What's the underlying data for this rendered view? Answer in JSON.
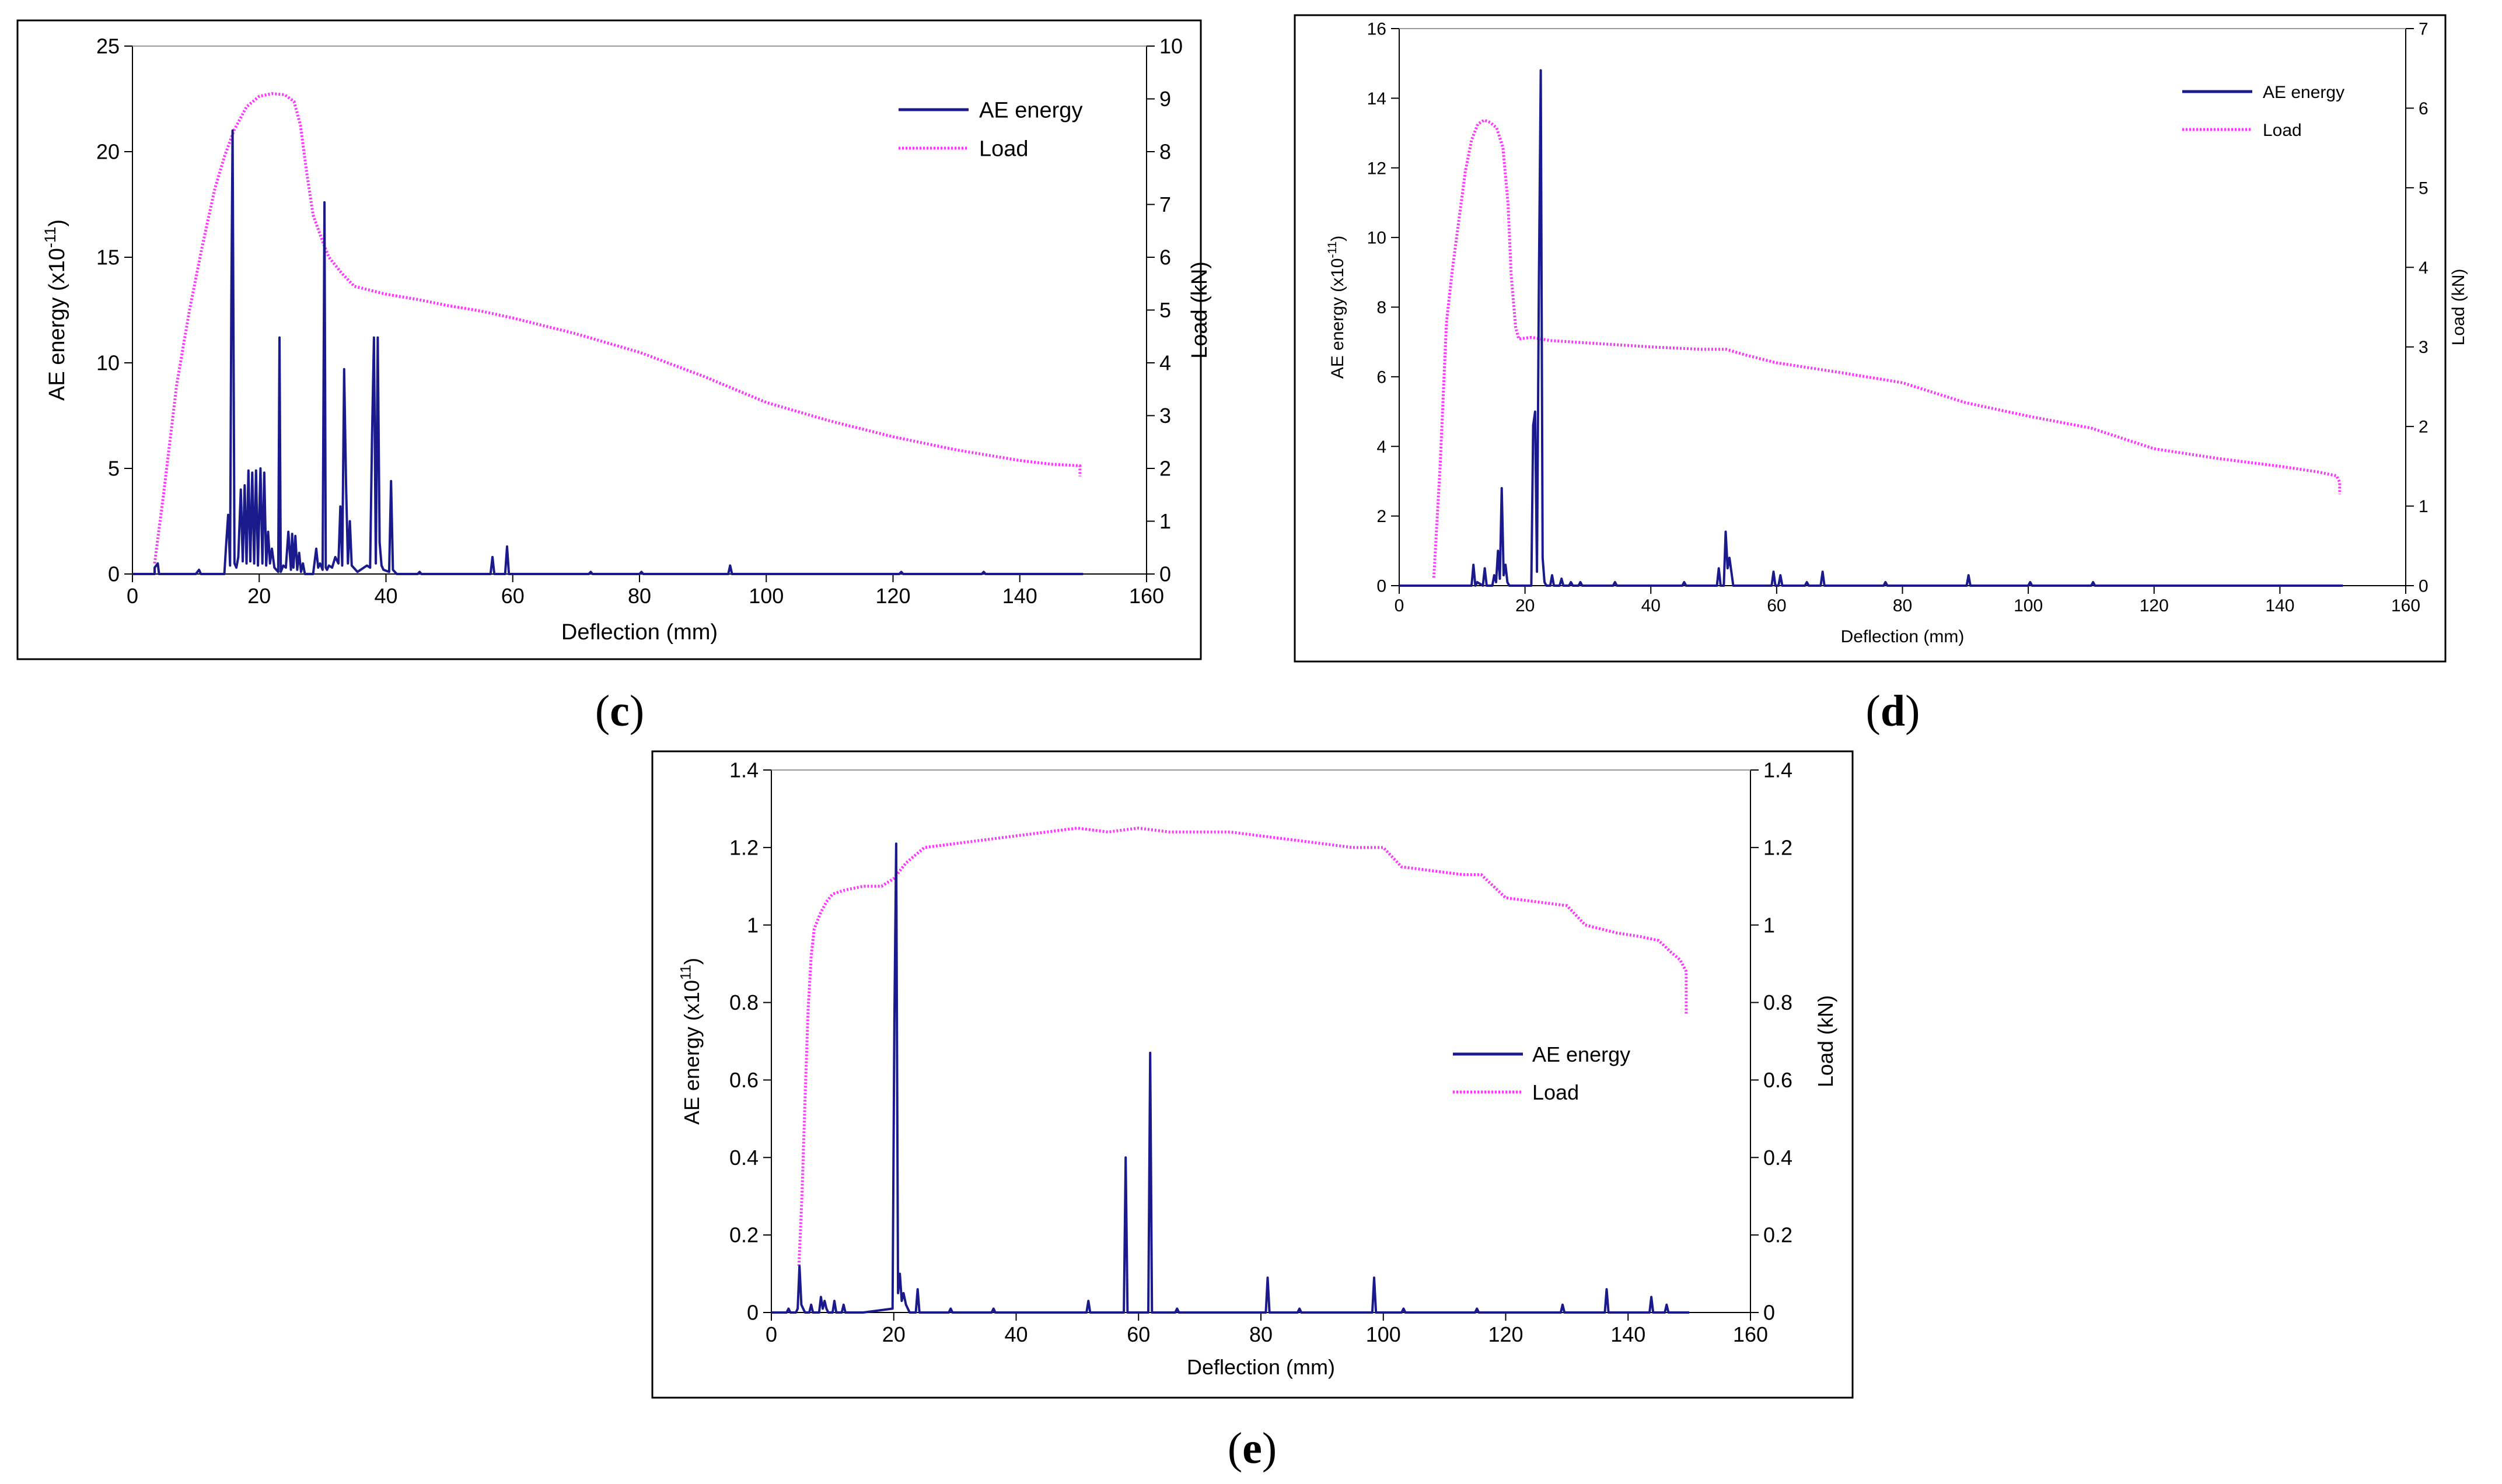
{
  "colors": {
    "ae_energy": "#1a1a8c",
    "load": "#ff33ff",
    "frame": "#000000",
    "plot_top": "#9a9a9a"
  },
  "chart_data": [
    {
      "id": "c",
      "type": "line",
      "caption_letter": "c",
      "xlabel": "Deflection (mm)",
      "ylabel_left": "AE energy (x10",
      "ylabel_left_exp": "-11",
      "ylabel_left_suffix": ")",
      "ylabel_right": "Load (kN)",
      "xlim": [
        0,
        160
      ],
      "ylim_left": [
        0,
        25
      ],
      "ylim_right": [
        0,
        10
      ],
      "xticks": [
        0,
        20,
        40,
        60,
        80,
        100,
        120,
        140,
        160
      ],
      "yticks_left": [
        0,
        5,
        10,
        15,
        20,
        25
      ],
      "yticks_right": [
        0,
        1,
        2,
        3,
        4,
        5,
        6,
        7,
        8,
        9,
        10
      ],
      "legend": [
        "AE energy",
        "Load"
      ],
      "legend_position": "top-right",
      "series": [
        {
          "name": "Load",
          "style": "dotted",
          "axis": "right",
          "x": [
            3.5,
            5,
            7,
            9,
            11,
            13,
            14.5,
            16,
            18,
            20,
            22,
            24,
            25.5,
            26.5,
            27.5,
            28.5,
            30,
            31,
            33,
            35,
            40,
            45,
            50,
            55,
            60,
            70,
            80,
            90,
            100,
            110,
            120,
            130,
            140,
            145,
            149.5,
            149.5
          ],
          "y": [
            0.2,
            1.6,
            3.6,
            5.0,
            6.2,
            7.3,
            7.9,
            8.4,
            8.85,
            9.05,
            9.1,
            9.08,
            8.95,
            8.5,
            7.6,
            6.8,
            6.3,
            6.0,
            5.7,
            5.45,
            5.3,
            5.2,
            5.08,
            4.98,
            4.85,
            4.55,
            4.2,
            3.75,
            3.25,
            2.9,
            2.6,
            2.35,
            2.15,
            2.08,
            2.05,
            1.85
          ]
        },
        {
          "name": "AE energy",
          "style": "solid",
          "axis": "left",
          "x": [
            0,
            3.5,
            3.5,
            4,
            4.2,
            10,
            10.5,
            10.8,
            14.5,
            14.8,
            15.1,
            15.4,
            15.6,
            15.8,
            16.1,
            16.4,
            16.7,
            17.1,
            17.4,
            17.7,
            18,
            18.3,
            18.6,
            18.9,
            19.2,
            19.5,
            19.8,
            20.2,
            20.5,
            20.8,
            21.1,
            21.4,
            21.7,
            22,
            22.4,
            22.7,
            23,
            23.2,
            23.4,
            23.8,
            24.2,
            24.6,
            25,
            25.2,
            25.4,
            25.7,
            26,
            26.3,
            26.6,
            26.9,
            27.2,
            28.5,
            29,
            29.3,
            29.6,
            30,
            30.3,
            30.5,
            30.7,
            31,
            31.5,
            32,
            32.5,
            32.8,
            33.1,
            33.4,
            33.7,
            34,
            34.3,
            34.6,
            34.9,
            35.2,
            35.5,
            37,
            37.5,
            37.8,
            38.1,
            38.4,
            38.7,
            39,
            39.3,
            39.6,
            40.5,
            40.8,
            41.1,
            41.4,
            41.7,
            45,
            45.3,
            45.6,
            56.5,
            56.8,
            57.1,
            58.8,
            59.1,
            59.4,
            60,
            72,
            72.3,
            72.6,
            80,
            80.3,
            80.6,
            94,
            94.3,
            94.6,
            95,
            121,
            121.3,
            121.6,
            134,
            134.3,
            134.6,
            150
          ],
          "y": [
            0,
            0,
            0.3,
            0.5,
            0,
            0,
            0.2,
            0,
            0,
            1.5,
            2.8,
            0.4,
            13,
            21,
            0.5,
            0.3,
            0.8,
            4,
            0.6,
            4.2,
            0.5,
            4.9,
            0.6,
            4.8,
            0.5,
            4.9,
            0.4,
            5,
            0.5,
            4.8,
            0.4,
            2,
            0.5,
            1.2,
            0.3,
            0.2,
            0.1,
            11.2,
            0.1,
            0.4,
            0.3,
            2,
            0.2,
            1.9,
            0.3,
            1.8,
            0.2,
            1,
            0.1,
            0.5,
            0,
            0,
            1.2,
            0.3,
            0.5,
            0.2,
            17.6,
            0.3,
            0.2,
            0.4,
            0.3,
            0.8,
            0.5,
            3.2,
            0.4,
            9.7,
            4.2,
            0.5,
            2.5,
            0.4,
            0.3,
            0.2,
            0.1,
            0.4,
            0.3,
            6.5,
            11.2,
            0.5,
            11.2,
            1.5,
            0.4,
            0.2,
            0.1,
            4.4,
            0.2,
            0.1,
            0,
            0,
            0.1,
            0,
            0,
            0.8,
            0,
            0,
            1.3,
            0,
            0,
            0,
            0.1,
            0,
            0,
            0.1,
            0,
            0,
            0.4,
            0,
            0,
            0,
            0.1,
            0,
            0,
            0.1,
            0,
            0
          ]
        }
      ]
    },
    {
      "id": "d",
      "type": "line",
      "caption_letter": "d",
      "xlabel": "Deflection (mm)",
      "ylabel_left": "AE energy (x10",
      "ylabel_left_exp": "-11",
      "ylabel_left_suffix": ")",
      "ylabel_right": "Load (kN)",
      "xlim": [
        0,
        160
      ],
      "ylim_left": [
        0,
        16
      ],
      "ylim_right": [
        0,
        7
      ],
      "xticks": [
        0,
        20,
        40,
        60,
        80,
        100,
        120,
        140,
        160
      ],
      "yticks_left": [
        0,
        2,
        4,
        6,
        8,
        10,
        12,
        14,
        16
      ],
      "yticks_right": [
        0,
        1,
        2,
        3,
        4,
        5,
        6,
        7
      ],
      "legend": [
        "AE energy",
        "Load"
      ],
      "legend_position": "top-right",
      "series": [
        {
          "name": "Load",
          "style": "dotted",
          "axis": "right",
          "x": [
            5.5,
            6.5,
            7.5,
            8.5,
            9.5,
            10.5,
            11.5,
            12.5,
            13.5,
            14.5,
            15.5,
            16.5,
            17.3,
            17.8,
            18.5,
            19,
            21,
            24,
            30,
            40,
            48,
            52,
            55,
            60,
            70,
            80,
            90,
            100,
            110,
            120,
            130,
            140,
            146,
            149,
            149.5,
            149.5
          ],
          "y": [
            0.1,
            1.5,
            3.3,
            4.0,
            4.6,
            5.2,
            5.6,
            5.8,
            5.85,
            5.82,
            5.75,
            5.5,
            4.8,
            3.9,
            3.25,
            3.1,
            3.12,
            3.08,
            3.05,
            3.0,
            2.97,
            2.97,
            2.9,
            2.8,
            2.68,
            2.55,
            2.3,
            2.13,
            1.98,
            1.72,
            1.6,
            1.5,
            1.43,
            1.38,
            1.3,
            1.15
          ]
        },
        {
          "name": "AE energy",
          "style": "solid",
          "axis": "left",
          "x": [
            0,
            11.5,
            11.8,
            12.1,
            12.4,
            13.3,
            13.6,
            13.9,
            14.8,
            15.1,
            15.4,
            15.7,
            16,
            16.3,
            16.6,
            16.9,
            17.2,
            17.5,
            17.8,
            21,
            21.3,
            21.6,
            21.9,
            22.2,
            22.5,
            22.8,
            23.1,
            23.4,
            24,
            24.3,
            24.6,
            25.5,
            25.8,
            26.1,
            27,
            27.3,
            27.6,
            28.5,
            28.8,
            29.1,
            34,
            34.3,
            34.6,
            45,
            45.3,
            45.6,
            50.5,
            50.8,
            51.1,
            51.6,
            51.9,
            52.2,
            52.5,
            53.1,
            59.2,
            59.5,
            59.8,
            60.3,
            60.6,
            60.9,
            64.5,
            64.8,
            65.1,
            67,
            67.3,
            67.6,
            77,
            77.3,
            77.6,
            90.2,
            90.5,
            90.8,
            100,
            100.3,
            100.6,
            110,
            110.3,
            110.6,
            150
          ],
          "y": [
            0,
            0,
            0.6,
            0,
            0.1,
            0,
            0.5,
            0,
            0,
            0.3,
            0.1,
            1.0,
            0.2,
            2.8,
            0.3,
            0.6,
            0.1,
            0,
            0,
            0,
            4.6,
            5.0,
            0.4,
            8.5,
            14.8,
            0.8,
            0.1,
            0,
            0,
            0.3,
            0,
            0,
            0.2,
            0,
            0,
            0.1,
            0,
            0,
            0.1,
            0,
            0,
            0.1,
            0,
            0,
            0.1,
            0,
            0,
            0.5,
            0,
            0,
            1.55,
            0.5,
            0.8,
            0,
            0,
            0.4,
            0,
            0,
            0.3,
            0,
            0,
            0.1,
            0,
            0,
            0.4,
            0,
            0,
            0.1,
            0,
            0,
            0.3,
            0,
            0,
            0.1,
            0,
            0,
            0.1,
            0,
            0
          ]
        }
      ]
    },
    {
      "id": "e",
      "type": "line",
      "caption_letter": "e",
      "xlabel": "Deflection (mm)",
      "ylabel_left": "AE energy (x10",
      "ylabel_left_exp": "11",
      "ylabel_left_suffix": ")",
      "ylabel_right": "Load (kN)",
      "xlim": [
        0,
        160
      ],
      "ylim_left": [
        0,
        1.4
      ],
      "ylim_right": [
        0,
        1.4
      ],
      "xticks": [
        0,
        20,
        40,
        60,
        80,
        100,
        120,
        140,
        160
      ],
      "yticks_left": [
        0,
        0.2,
        0.4,
        0.6,
        0.8,
        1,
        1.2,
        1.4
      ],
      "yticks_right": [
        0,
        0.2,
        0.4,
        0.6,
        0.8,
        1,
        1.2,
        1.4
      ],
      "legend": [
        "AE energy",
        "Load"
      ],
      "legend_position": "center-right",
      "series": [
        {
          "name": "Load",
          "style": "dotted",
          "axis": "right",
          "x": [
            4.5,
            5,
            5.5,
            6,
            6.5,
            7,
            8,
            9,
            10,
            12,
            15,
            18,
            20,
            22,
            25,
            30,
            35,
            40,
            45,
            50,
            55,
            60,
            65,
            70,
            75,
            80,
            85,
            90,
            95,
            100,
            103,
            108,
            113,
            116,
            120,
            125,
            130,
            133,
            138,
            142,
            145,
            147,
            148.5,
            149.5,
            149.5
          ],
          "y": [
            0.12,
            0.3,
            0.55,
            0.78,
            0.92,
            0.99,
            1.03,
            1.06,
            1.08,
            1.09,
            1.1,
            1.1,
            1.12,
            1.16,
            1.2,
            1.21,
            1.22,
            1.23,
            1.24,
            1.25,
            1.24,
            1.25,
            1.24,
            1.24,
            1.24,
            1.23,
            1.22,
            1.21,
            1.2,
            1.2,
            1.15,
            1.14,
            1.13,
            1.13,
            1.07,
            1.06,
            1.05,
            1.0,
            0.98,
            0.97,
            0.96,
            0.93,
            0.91,
            0.88,
            0.77
          ]
        },
        {
          "name": "AE energy",
          "style": "solid",
          "axis": "left",
          "x": [
            0,
            2.5,
            2.8,
            3.1,
            4,
            4.3,
            4.6,
            4.9,
            5.2,
            5.5,
            6.2,
            6.5,
            6.8,
            7.8,
            8.1,
            8.4,
            8.7,
            9.0,
            9.3,
            10,
            10.3,
            10.6,
            11.5,
            11.8,
            12.1,
            15,
            19.8,
            20.1,
            20.4,
            20.7,
            21.0,
            21.3,
            21.6,
            22.0,
            22.3,
            22.6,
            23.6,
            23.9,
            24.2,
            29,
            29.3,
            29.6,
            36,
            36.3,
            36.6,
            51.5,
            51.8,
            52.1,
            57.6,
            57.9,
            58.2,
            61.6,
            61.9,
            62.2,
            66,
            66.3,
            66.6,
            80.8,
            81.1,
            81.4,
            86,
            86.3,
            86.6,
            98.2,
            98.5,
            98.8,
            103,
            103.3,
            103.6,
            115,
            115.3,
            115.6,
            129,
            129.3,
            129.6,
            136.2,
            136.5,
            136.8,
            143.5,
            143.8,
            144.1,
            146,
            146.3,
            146.6,
            150
          ],
          "y": [
            0,
            0,
            0.01,
            0,
            0,
            0.01,
            0.12,
            0.02,
            0.01,
            0,
            0,
            0.02,
            0,
            0,
            0.04,
            0.01,
            0.03,
            0.01,
            0,
            0,
            0.03,
            0,
            0,
            0.02,
            0,
            0,
            0.01,
            0.75,
            1.21,
            0.05,
            0.1,
            0.03,
            0.05,
            0.02,
            0.01,
            0,
            0,
            0.06,
            0,
            0,
            0.01,
            0,
            0,
            0.01,
            0,
            0,
            0.03,
            0,
            0,
            0.4,
            0,
            0,
            0.67,
            0,
            0,
            0.01,
            0,
            0,
            0.09,
            0,
            0,
            0.01,
            0,
            0,
            0.09,
            0,
            0,
            0.01,
            0,
            0,
            0.01,
            0,
            0,
            0.02,
            0,
            0,
            0.06,
            0,
            0,
            0.04,
            0,
            0,
            0.02,
            0,
            0
          ]
        }
      ]
    }
  ]
}
